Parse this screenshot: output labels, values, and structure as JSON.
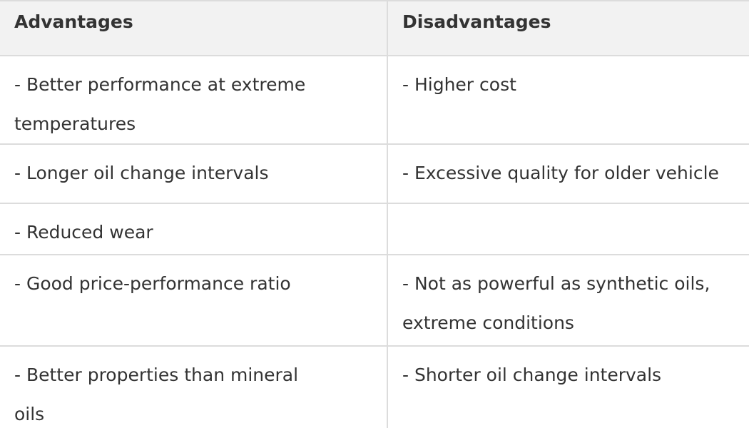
{
  "table": {
    "header": [
      "Advantages",
      "Disadvantages"
    ],
    "rows": [
      [
        [
          "- Better performance at extreme",
          "temperatures"
        ],
        [
          "- Higher cost"
        ]
      ],
      [
        [
          "- Longer oil change intervals"
        ],
        [
          "- Excessive quality for older vehicle"
        ]
      ],
      [
        [
          "- Reduced wear"
        ],
        []
      ],
      [
        [
          "- Good price-performance ratio"
        ],
        [
          "- Not as powerful as synthetic oils,",
          "extreme conditions"
        ]
      ],
      [
        [
          "- Better properties than mineral",
          "oils"
        ],
        [
          "- Shorter oil change intervals"
        ]
      ]
    ]
  }
}
